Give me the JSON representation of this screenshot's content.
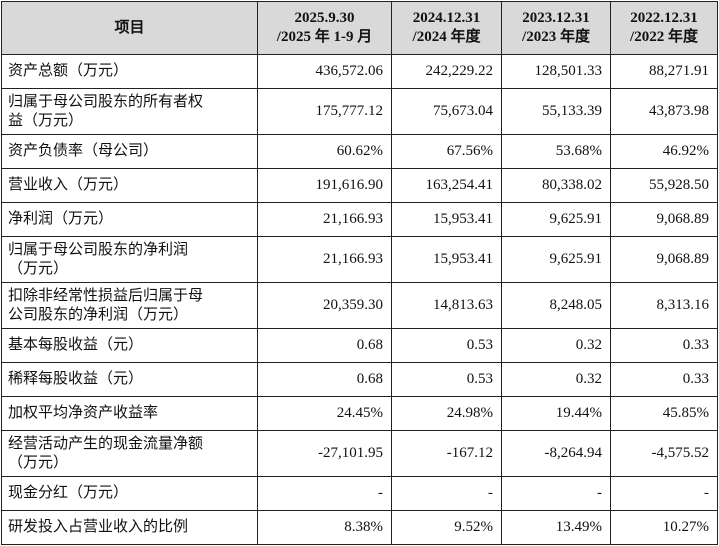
{
  "header": {
    "item": "项目",
    "periods": [
      [
        "2025.9.30",
        "/2025 年 1-9 月"
      ],
      [
        "2024.12.31",
        "/2024 年度"
      ],
      [
        "2023.12.31",
        "/2023 年度"
      ],
      [
        "2022.12.31",
        "/2022 年度"
      ]
    ]
  },
  "rows": [
    {
      "label": [
        "资产总额（万元）"
      ],
      "values": [
        "436,572.06",
        "242,229.22",
        "128,501.33",
        "88,271.91"
      ]
    },
    {
      "label": [
        "归属于母公司股东的所有者权",
        "益（万元）"
      ],
      "values": [
        "175,777.12",
        "75,673.04",
        "55,133.39",
        "43,873.98"
      ]
    },
    {
      "label": [
        "资产负债率（母公司）"
      ],
      "values": [
        "60.62%",
        "67.56%",
        "53.68%",
        "46.92%"
      ]
    },
    {
      "label": [
        "营业收入（万元）"
      ],
      "values": [
        "191,616.90",
        "163,254.41",
        "80,338.02",
        "55,928.50"
      ]
    },
    {
      "label": [
        "净利润（万元）"
      ],
      "values": [
        "21,166.93",
        "15,953.41",
        "9,625.91",
        "9,068.89"
      ]
    },
    {
      "label": [
        "归属于母公司股东的净利润",
        "（万元）"
      ],
      "values": [
        "21,166.93",
        "15,953.41",
        "9,625.91",
        "9,068.89"
      ]
    },
    {
      "label": [
        "扣除非经常性损益后归属于母",
        "公司股东的净利润（万元）"
      ],
      "values": [
        "20,359.30",
        "14,813.63",
        "8,248.05",
        "8,313.16"
      ]
    },
    {
      "label": [
        "基本每股收益（元）"
      ],
      "values": [
        "0.68",
        "0.53",
        "0.32",
        "0.33"
      ]
    },
    {
      "label": [
        "稀释每股收益（元）"
      ],
      "values": [
        "0.68",
        "0.53",
        "0.32",
        "0.33"
      ]
    },
    {
      "label": [
        "加权平均净资产收益率"
      ],
      "values": [
        "24.45%",
        "24.98%",
        "19.44%",
        "45.85%"
      ]
    },
    {
      "label": [
        "经营活动产生的现金流量净额",
        "（万元）"
      ],
      "values": [
        "-27,101.95",
        "-167.12",
        "-8,264.94",
        "-4,575.52"
      ]
    },
    {
      "label": [
        "现金分红（万元）"
      ],
      "values": [
        "-",
        "-",
        "-",
        "-"
      ]
    },
    {
      "label": [
        "研发投入占营业收入的比例"
      ],
      "values": [
        "8.38%",
        "9.52%",
        "13.49%",
        "10.27%"
      ]
    }
  ]
}
